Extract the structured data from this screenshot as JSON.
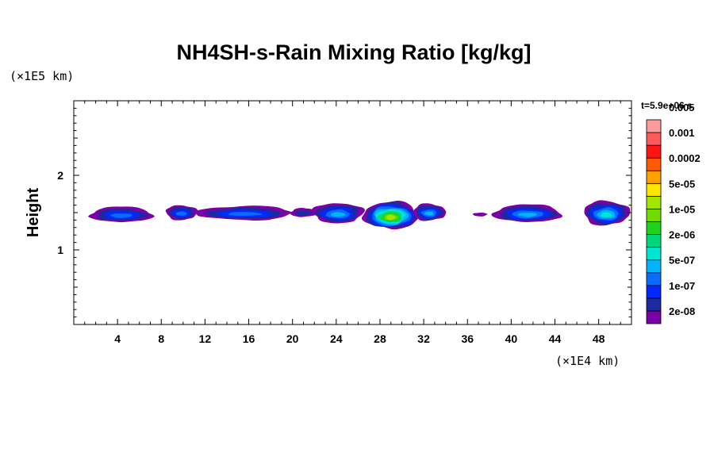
{
  "chart_data": {
    "type": "heatmap",
    "title": "NH4SH-s-Rain Mixing Ratio [kg/kg]",
    "xlabel": "",
    "ylabel": "Height",
    "x_unit": "(×1E4 km)",
    "y_unit": "(×1E5 km)",
    "time_label": "t=5.9e+06 s",
    "xlim": [
      0,
      51
    ],
    "ylim": [
      0,
      3
    ],
    "x_ticks": [
      4,
      8,
      12,
      16,
      20,
      24,
      28,
      32,
      36,
      40,
      44,
      48
    ],
    "y_ticks": [
      1,
      2
    ],
    "grid": false,
    "colorbar": {
      "placement": "right",
      "levels": [
        "2e-08",
        "1e-07",
        "5e-07",
        "2e-06",
        "1e-05",
        "5e-05",
        "0.0002",
        "0.001",
        "0.005"
      ],
      "colors": [
        "#7a00a8",
        "#1c2aa0",
        "#0028ff",
        "#0a6cff",
        "#00b4ff",
        "#00e6d2",
        "#00d77a",
        "#1ed21e",
        "#6edc00",
        "#a5e600",
        "#ffe600",
        "#ffa000",
        "#ff5a00",
        "#ff1414",
        "#ff5a5a",
        "#ff9a9a"
      ]
    },
    "cells": [
      {
        "x_start": 1.5,
        "x_end": 7.2,
        "z_bottom": 1.37,
        "z_top": 1.58,
        "peak": 4
      },
      {
        "x_start": 8.4,
        "x_end": 11.3,
        "z_bottom": 1.4,
        "z_top": 1.6,
        "peak": 4
      },
      {
        "x_start": 11.2,
        "x_end": 20.0,
        "z_bottom": 1.4,
        "z_top": 1.59,
        "peak": 4
      },
      {
        "x_start": 19.8,
        "x_end": 22.2,
        "z_bottom": 1.44,
        "z_top": 1.56,
        "peak": 2
      },
      {
        "x_start": 21.8,
        "x_end": 26.5,
        "z_bottom": 1.36,
        "z_top": 1.63,
        "peak": 5
      },
      {
        "x_start": 26.5,
        "x_end": 31.5,
        "z_bottom": 1.28,
        "z_top": 1.65,
        "peak": 10
      },
      {
        "x_start": 31.0,
        "x_end": 34.0,
        "z_bottom": 1.39,
        "z_top": 1.62,
        "peak": 5
      },
      {
        "x_start": 36.5,
        "x_end": 37.8,
        "z_bottom": 1.45,
        "z_top": 1.5,
        "peak": 1
      },
      {
        "x_start": 38.4,
        "x_end": 44.6,
        "z_bottom": 1.37,
        "z_top": 1.61,
        "peak": 5
      },
      {
        "x_start": 46.6,
        "x_end": 50.8,
        "z_bottom": 1.33,
        "z_top": 1.66,
        "peak": 6
      }
    ]
  }
}
